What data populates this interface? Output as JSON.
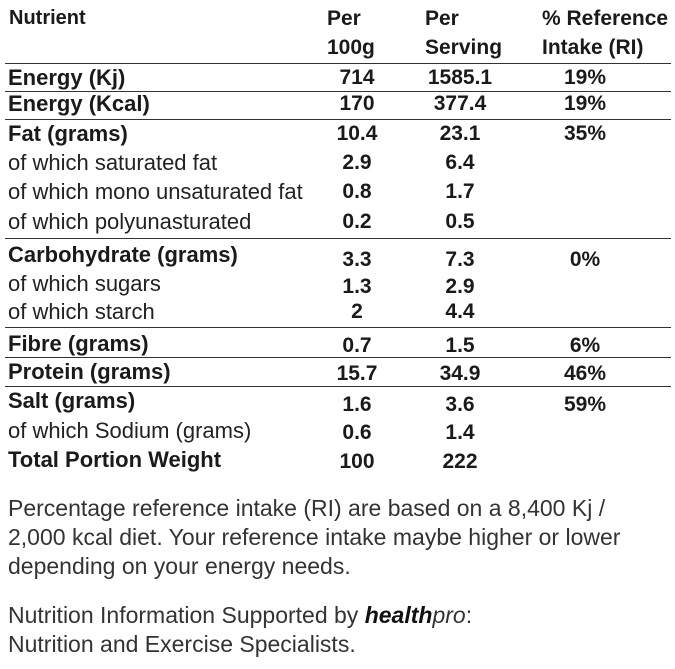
{
  "header": {
    "nutrient": "Nutrient",
    "per_100g_line1": "Per",
    "per_100g_line2": "100g",
    "per_serving_line1": "Per",
    "per_serving_line2": "Serving",
    "ri_line1": "% Reference",
    "ri_line2": "Intake (RI)"
  },
  "rows": [
    {
      "name": "Energy (Kj)",
      "per100": "714",
      "perServing": "1585.1",
      "ri": "19%"
    },
    {
      "name": "Energy (Kcal)",
      "per100": "170",
      "perServing": "377.4",
      "ri": "19%"
    },
    {
      "name": "Fat (grams)",
      "per100": "10.4",
      "perServing": "23.1",
      "ri": "35%"
    },
    {
      "name": "of which saturated fat",
      "per100": "2.9",
      "perServing": "6.4",
      "ri": ""
    },
    {
      "name": "of which mono unsaturated fat",
      "per100": "0.8",
      "perServing": "1.7",
      "ri": ""
    },
    {
      "name": "of which polyunasturated",
      "per100": "0.2",
      "perServing": "0.5",
      "ri": ""
    },
    {
      "name": "Carbohydrate (grams)",
      "per100": "3.3",
      "perServing": "7.3",
      "ri": "0%"
    },
    {
      "name": "of which sugars",
      "per100": "1.3",
      "perServing": "2.9",
      "ri": ""
    },
    {
      "name": "of which starch",
      "per100": "2",
      "perServing": "4.4",
      "ri": ""
    },
    {
      "name": "Fibre (grams)",
      "per100": "0.7",
      "perServing": "1.5",
      "ri": "6%"
    },
    {
      "name": "Protein (grams)",
      "per100": "15.7",
      "perServing": "34.9",
      "ri": "46%"
    },
    {
      "name": "Salt (grams)",
      "per100": "1.6",
      "perServing": "3.6",
      "ri": "59%"
    },
    {
      "name": "of which Sodium (grams)",
      "per100": "0.6",
      "perServing": "1.4",
      "ri": ""
    },
    {
      "name": "Total Portion Weight",
      "per100": "100",
      "perServing": "222",
      "ri": ""
    }
  ],
  "notes": {
    "ri_note": "Percentage reference intake (RI) are based on a 8,400 Kj / 2,000 kcal diet. Your reference intake maybe higher or lower depending on your energy needs.",
    "supported_prefix": "Nutrition Information Supported by ",
    "brand_bold": "health",
    "brand_italic": "pro",
    "supported_suffix": ":",
    "supported_line2": "Nutrition and Exercise Specialists."
  }
}
